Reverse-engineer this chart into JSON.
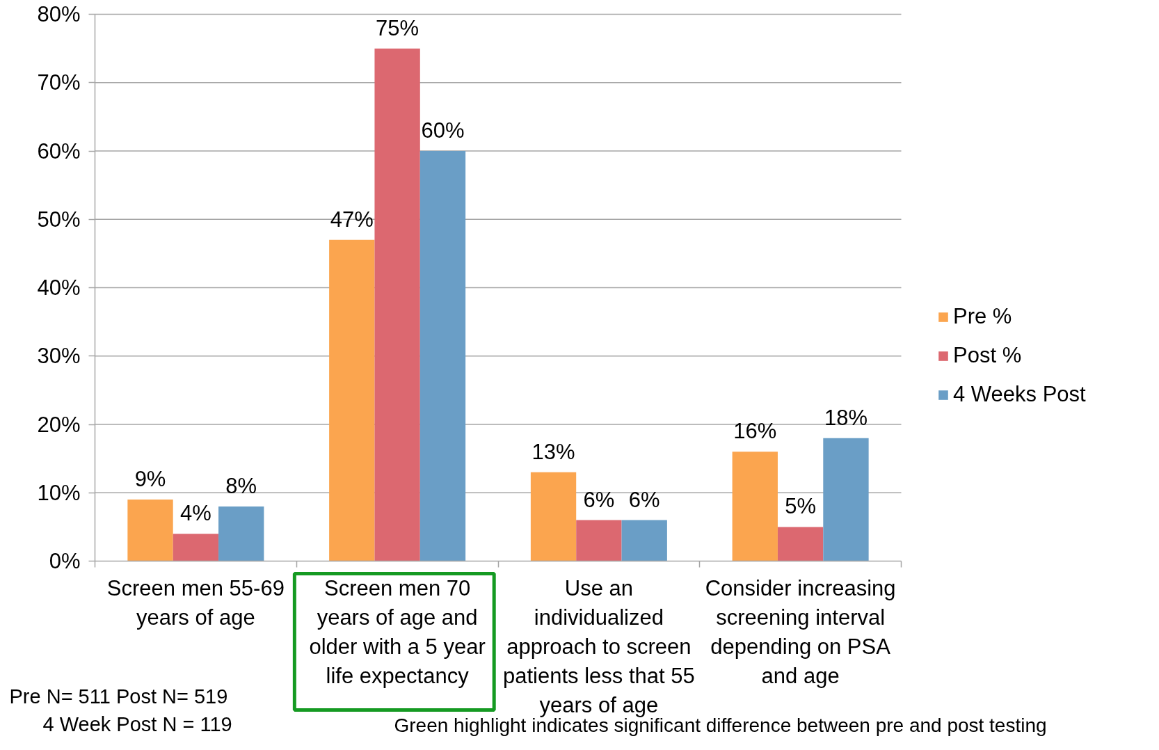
{
  "chart_data": {
    "type": "bar",
    "categories": [
      "Screen men 55-69\nyears of age",
      "Screen men 70\nyears of age and\nolder with a 5 year\nlife expectancy",
      "Use an\nindividualized\napproach to screen\npatients less that 55\nyears of age",
      "Consider increasing\nscreening interval\ndepending on PSA\nand age"
    ],
    "series": [
      {
        "name": "Pre %",
        "color": "#fba54f",
        "values": [
          9,
          47,
          13,
          16
        ],
        "value_labels": [
          "9%",
          "47%",
          "13%",
          "16%"
        ]
      },
      {
        "name": "Post %",
        "color": "#dc6870",
        "values": [
          4,
          75,
          6,
          5
        ],
        "value_labels": [
          "4%",
          "75%",
          "6%",
          "5%"
        ]
      },
      {
        "name": "4 Weeks Post",
        "color": "#6a9ec6",
        "values": [
          8,
          60,
          6,
          18
        ],
        "value_labels": [
          "8%",
          "60%",
          "6%",
          "18%"
        ]
      }
    ],
    "ylim": [
      0,
      80
    ],
    "yticks": [
      {
        "value": 0,
        "label": "0%"
      },
      {
        "value": 10,
        "label": "10%"
      },
      {
        "value": 20,
        "label": "20%"
      },
      {
        "value": 30,
        "label": "30%"
      },
      {
        "value": 40,
        "label": "40%"
      },
      {
        "value": 50,
        "label": "50%"
      },
      {
        "value": 60,
        "label": "60%"
      },
      {
        "value": 70,
        "label": "70%"
      },
      {
        "value": 80,
        "label": "80%"
      }
    ],
    "grid": "y",
    "legend": "right",
    "annotations": [
      "Pre  N= 511   Post  N= 519",
      "4 Week Post N = 119",
      "Green highlight indicates significant difference between pre and post testing"
    ]
  }
}
